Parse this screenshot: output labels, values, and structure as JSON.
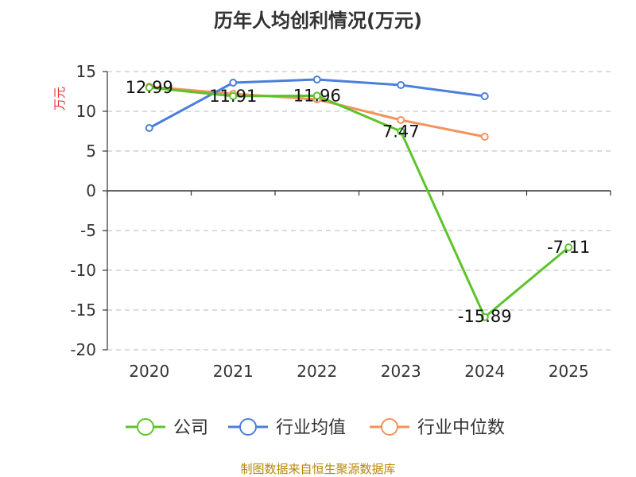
{
  "chart_data": {
    "type": "line",
    "title": "历年人均创利情况(万元)",
    "ylabel": "万元",
    "xlabel": "",
    "x": [
      "2020",
      "2021",
      "2022",
      "2023",
      "2024",
      "2025"
    ],
    "ylim": [
      -20,
      15
    ],
    "yticks": [
      15,
      10,
      5,
      0,
      -5,
      -10,
      -15,
      -20
    ],
    "grid": true,
    "legend_position": "bottom",
    "series": [
      {
        "name": "公司",
        "color": "#5cc42a",
        "values": [
          12.99,
          11.91,
          11.96,
          7.47,
          -15.89,
          -7.11
        ],
        "labels": [
          "12.99",
          "11.91",
          "11.96",
          "7.47",
          "-15.89",
          "-7.11"
        ]
      },
      {
        "name": "行业均值",
        "color": "#4a7fdc",
        "values": [
          7.9,
          13.6,
          14.0,
          13.3,
          11.9,
          null
        ]
      },
      {
        "name": "行业中位数",
        "color": "#f4925c",
        "values": [
          13.1,
          12.2,
          11.5,
          8.9,
          6.8,
          null
        ]
      }
    ]
  },
  "source": "制图数据来自恒生聚源数据库"
}
